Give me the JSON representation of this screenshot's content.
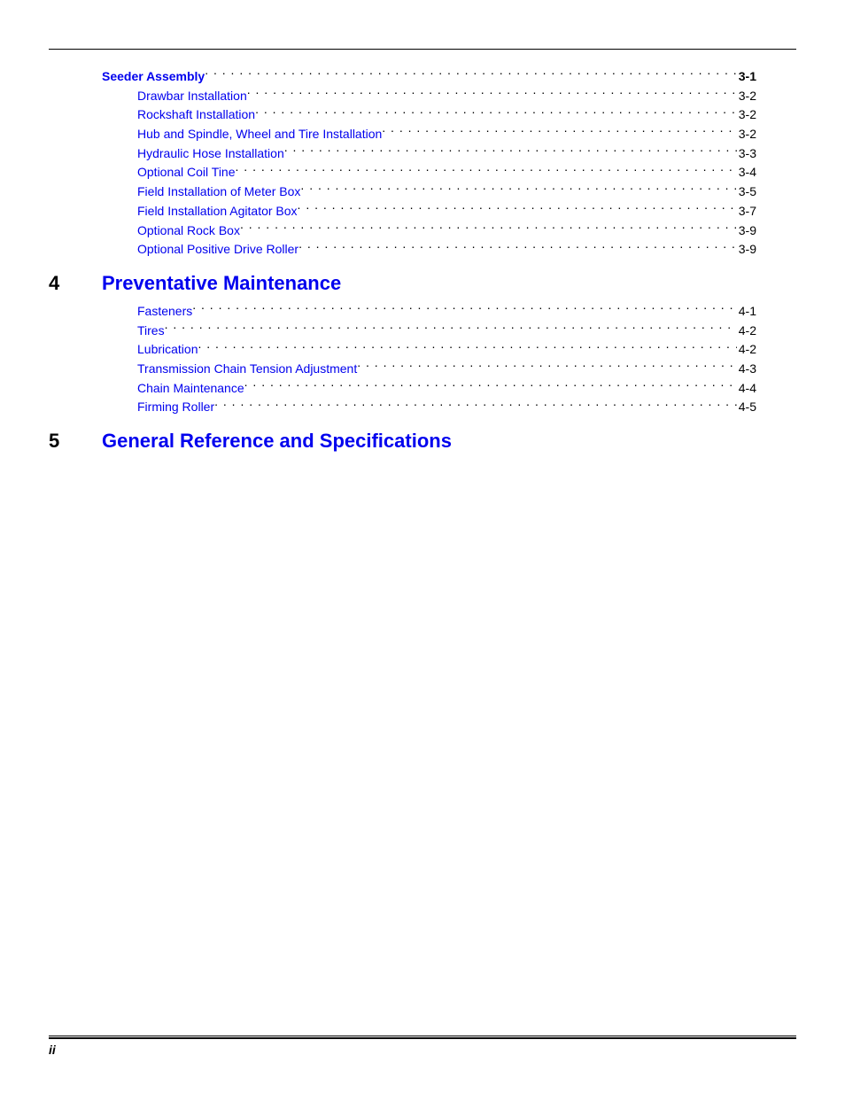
{
  "link_color": "#0000ee",
  "section3": {
    "heading": {
      "label": "Seeder Assembly",
      "page": "3-1",
      "bold": true
    },
    "items": [
      {
        "label": "Drawbar Installation",
        "page": "3-2"
      },
      {
        "label": "Rockshaft Installation",
        "page": "3-2"
      },
      {
        "label": "Hub and Spindle, Wheel and Tire Installation",
        "page": "3-2"
      },
      {
        "label": "Hydraulic Hose Installation",
        "page": "3-3"
      },
      {
        "label": "Optional Coil Tine",
        "page": "3-4"
      },
      {
        "label": "Field Installation of Meter Box",
        "page": "3-5"
      },
      {
        "label": "Field Installation Agitator Box",
        "page": "3-7"
      },
      {
        "label": "Optional Rock Box",
        "page": "3-9"
      },
      {
        "label": "Optional Positive Drive Roller",
        "page": "3-9"
      }
    ]
  },
  "chapter4": {
    "number": "4",
    "title": "Preventative Maintenance",
    "items": [
      {
        "label": "Fasteners",
        "page": "4-1"
      },
      {
        "label": "Tires",
        "page": "4-2"
      },
      {
        "label": "Lubrication",
        "page": "4-2"
      },
      {
        "label": "Transmission Chain Tension Adjustment",
        "page": "4-3"
      },
      {
        "label": "Chain Maintenance",
        "page": "4-4"
      },
      {
        "label": "Firming Roller",
        "page": "4-5"
      }
    ]
  },
  "chapter5": {
    "number": "5",
    "title": "General Reference and Specifications"
  },
  "footer": {
    "page_number": "ii"
  }
}
